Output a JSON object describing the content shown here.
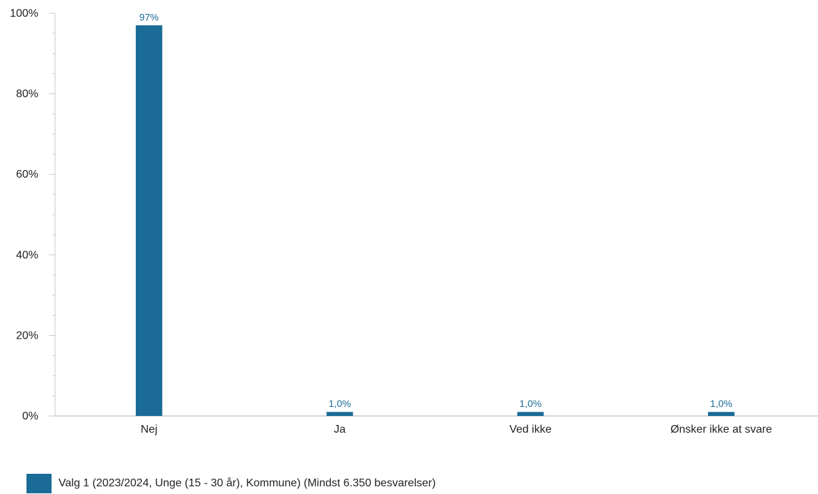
{
  "chart_data": {
    "type": "bar",
    "categories": [
      "Nej",
      "Ja",
      "Ved ikke",
      "Ønsker ikke at svare"
    ],
    "series": [
      {
        "name": "Valg 1 (2023/2024, Unge (15 - 30 år), Kommune) (Mindst 6.350 besvarelser)",
        "values": [
          97,
          1.0,
          1.0,
          1.0
        ],
        "labels": [
          "97%",
          "1,0%",
          "1,0%",
          "1,0%"
        ],
        "color": "#1a6b96"
      }
    ],
    "title": "",
    "xlabel": "",
    "ylabel": "",
    "ylim": [
      0,
      100
    ],
    "yticks": [
      0,
      20,
      40,
      60,
      80,
      100
    ],
    "ytick_labels": [
      "0%",
      "20%",
      "40%",
      "60%",
      "80%",
      "100%"
    ],
    "grid": false,
    "legend_position": "bottom-left"
  }
}
